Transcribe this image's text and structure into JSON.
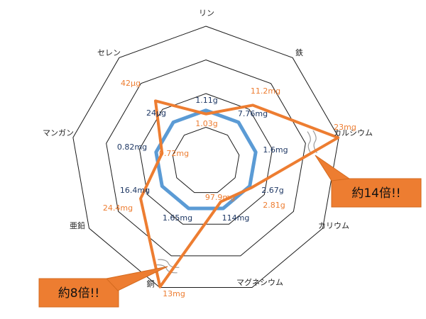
{
  "chart_data": {
    "type": "radar",
    "axes": [
      "リン",
      "鉄",
      "カルシウム",
      "カリウム",
      "マグネシウム",
      "銅",
      "亜鉛",
      "マンガン",
      "セレン"
    ],
    "grid_levels": 4,
    "series": [
      {
        "color": "#5b9bd5",
        "levels": [
          1.0,
          1.0,
          1.0,
          1.0,
          1.0,
          1.0,
          1.0,
          1.0,
          1.0
        ],
        "value_labels": [
          "1.11g",
          "7.76mg",
          "1.6mg",
          "2.67g",
          "114mg",
          "1.65mg",
          "16.4mg",
          "0.82mg",
          "24μg"
        ]
      },
      {
        "color": "#ed7d31",
        "levels": [
          0.93,
          1.44,
          14.4,
          1.05,
          0.86,
          7.9,
          1.49,
          0.88,
          1.75
        ],
        "value_labels": [
          "1.03g",
          "11.2mg",
          "23mg",
          "2.81g",
          "97.9mg",
          "13mg",
          "24.4mg",
          "0.72mg",
          "42μg"
        ]
      }
    ],
    "callouts": [
      {
        "text": "約14倍!!",
        "axis": "カルシウム"
      },
      {
        "text": "約8倍!!",
        "axis": "銅"
      }
    ]
  }
}
